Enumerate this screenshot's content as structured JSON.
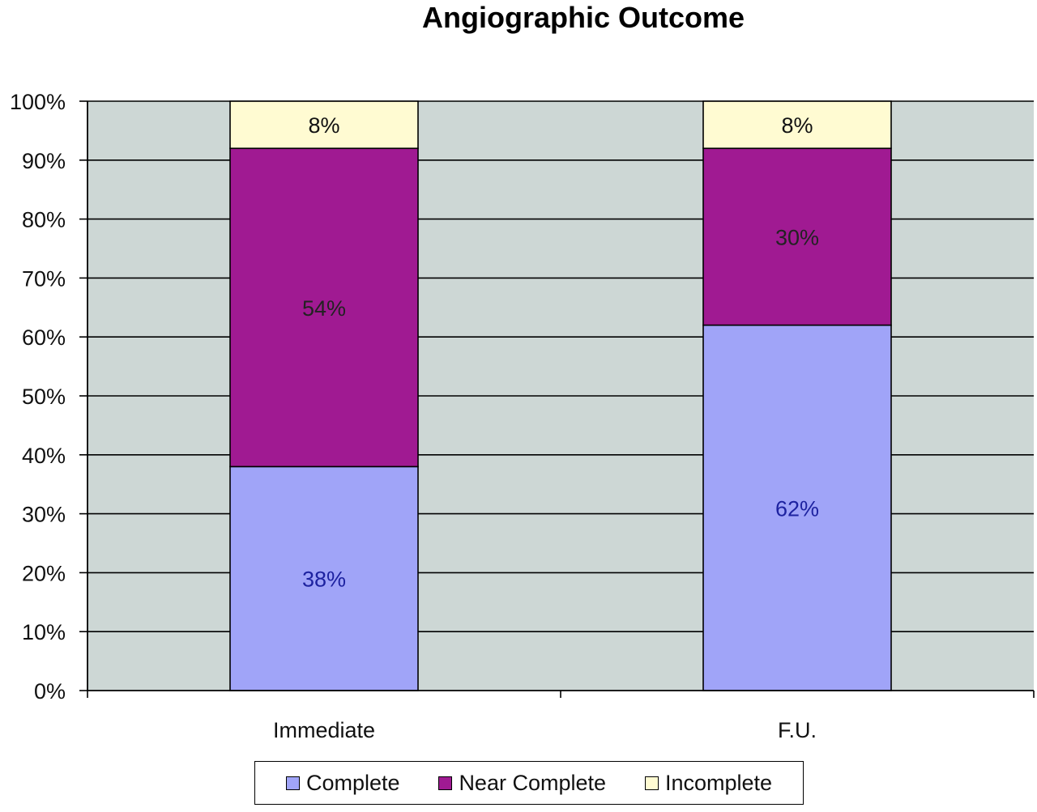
{
  "chart_data": {
    "type": "bar",
    "stacked": true,
    "title": "Angiographic Outcome",
    "categories": [
      "Immediate",
      "F.U."
    ],
    "series": [
      {
        "name": "Complete",
        "values": [
          38,
          62
        ],
        "labels": [
          "38%",
          "62%"
        ],
        "color": "#a0a4f8",
        "label_color": "#1d22a0"
      },
      {
        "name": "Near Complete",
        "values": [
          54,
          30
        ],
        "labels": [
          "54%",
          "30%"
        ],
        "color": "#a01a92",
        "label_color": "#222222"
      },
      {
        "name": "Incomplete",
        "values": [
          8,
          8
        ],
        "labels": [
          "8%",
          "8%"
        ],
        "color": "#fffbd2",
        "label_color": "#111111"
      }
    ],
    "ylim": [
      0,
      100
    ],
    "yticks": [
      "0%",
      "10%",
      "20%",
      "30%",
      "40%",
      "50%",
      "60%",
      "70%",
      "80%",
      "90%",
      "100%"
    ],
    "grid": true,
    "plot_background": "#cdd7d5",
    "legend_position": "bottom"
  }
}
